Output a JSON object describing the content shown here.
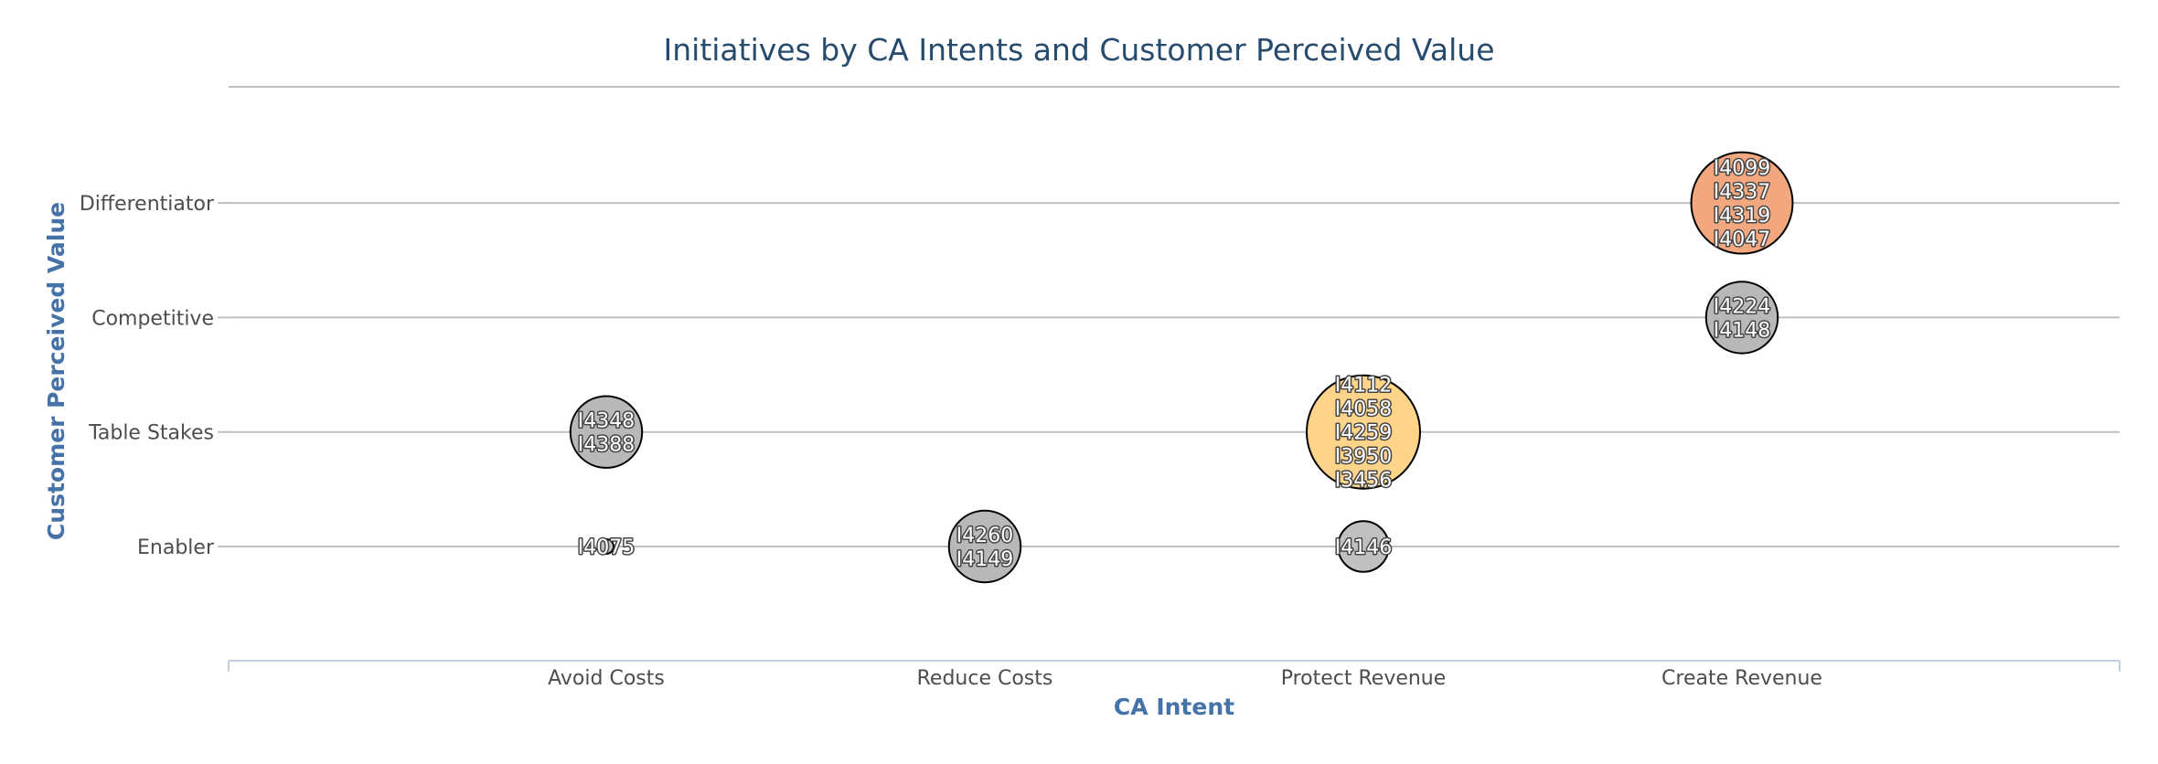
{
  "chart_data": {
    "type": "bubble",
    "title": "Initiatives by CA Intents and Customer Perceived Value",
    "xlabel": "CA Intent",
    "ylabel": "Customer Perceived Value",
    "x_categories": [
      "Avoid Costs",
      "Reduce Costs",
      "Protect Revenue",
      "Create Revenue"
    ],
    "y_categories": [
      "Enabler",
      "Table Stakes",
      "Competitive",
      "Differentiator"
    ],
    "grid": true,
    "points": [
      {
        "x": "Avoid Costs",
        "y": "Enabler",
        "size": 1,
        "labels": [
          "I4075"
        ],
        "color": "#c0c0c0"
      },
      {
        "x": "Avoid Costs",
        "y": "Table Stakes",
        "size": 2,
        "labels": [
          "I4348",
          "I4388"
        ],
        "color": "#b8b8b8"
      },
      {
        "x": "Reduce Costs",
        "y": "Enabler",
        "size": 2,
        "labels": [
          "I4260",
          "I4149"
        ],
        "color": "#b8b8b8"
      },
      {
        "x": "Protect Revenue",
        "y": "Enabler",
        "size": 1,
        "labels": [
          "I4146"
        ],
        "color": "#c0c0c0"
      },
      {
        "x": "Protect Revenue",
        "y": "Table Stakes",
        "size": 5,
        "labels": [
          "I4112",
          "I4058",
          "I4259",
          "I3950",
          "I3456"
        ],
        "color": "#fdd48a"
      },
      {
        "x": "Create Revenue",
        "y": "Competitive",
        "size": 2,
        "labels": [
          "I4224",
          "I4148"
        ],
        "color": "#b8b8b8"
      },
      {
        "x": "Create Revenue",
        "y": "Differentiator",
        "size": 4,
        "labels": [
          "I4099",
          "I4337",
          "I4319",
          "I4047"
        ],
        "color": "#f2a77e"
      }
    ]
  }
}
